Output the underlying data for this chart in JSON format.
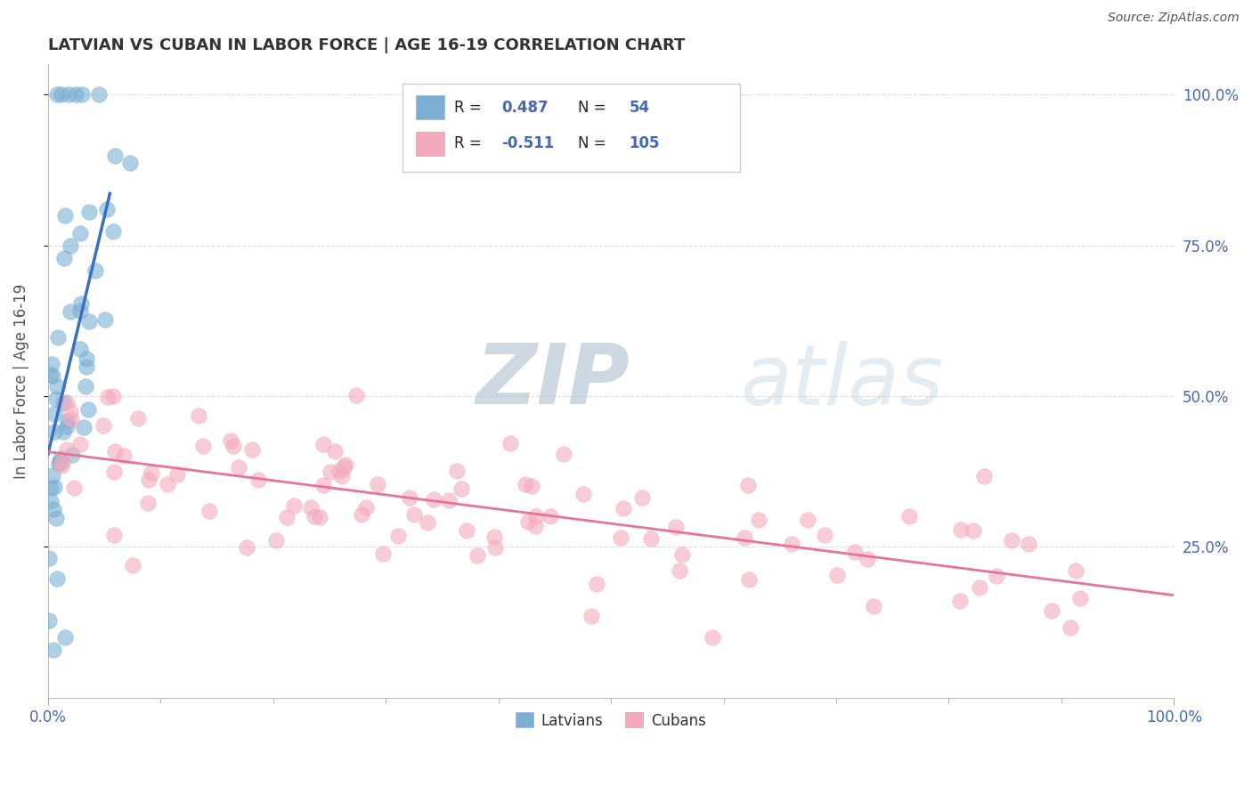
{
  "title": "LATVIAN VS CUBAN IN LABOR FORCE | AGE 16-19 CORRELATION CHART",
  "source_text": "Source: ZipAtlas.com",
  "ylabel": "In Labor Force | Age 16-19",
  "x_tick_left_label": "0.0%",
  "x_tick_right_label": "100.0%",
  "y_tick_labels_right": [
    "25.0%",
    "50.0%",
    "75.0%",
    "100.0%"
  ],
  "y_tick_vals": [
    25,
    50,
    75,
    100
  ],
  "legend_labels": [
    "Latvians",
    "Cubans"
  ],
  "legend_R": [
    0.487,
    -0.511
  ],
  "legend_N": [
    54,
    105
  ],
  "blue_color": "#7BAFD4",
  "pink_color": "#F4AABC",
  "blue_line_color": "#3B6FBF",
  "pink_line_color": "#E87298",
  "watermark_ZIP": "#B8C8D8",
  "watermark_atlas": "#C8D8E8",
  "background_color": "#FFFFFF",
  "grid_color": "#DDDDDD",
  "tick_color": "#4466BB",
  "title_color": "#333333",
  "ylabel_color": "#555555"
}
